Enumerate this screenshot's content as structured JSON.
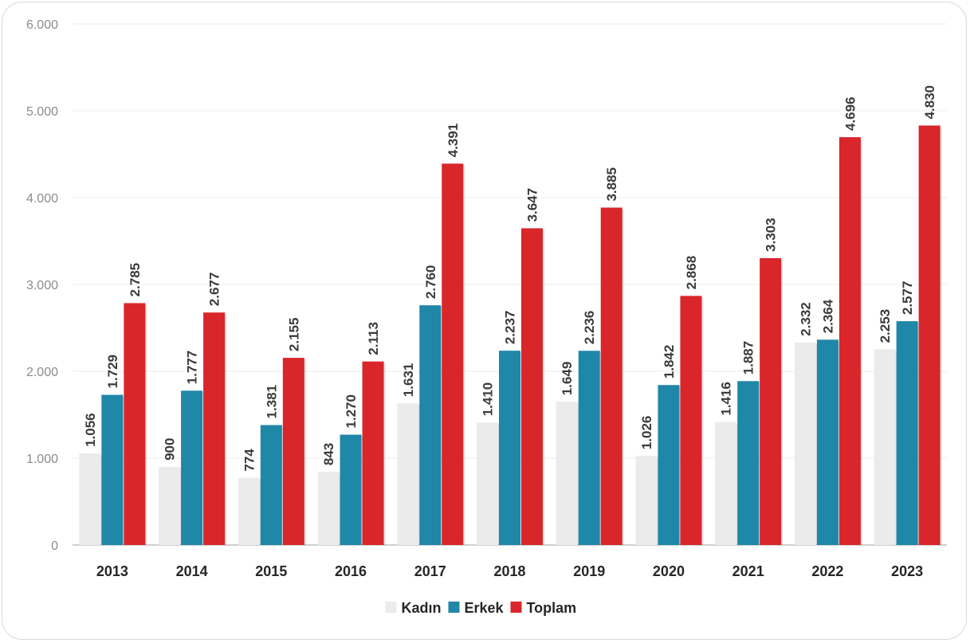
{
  "chart_data": {
    "type": "bar",
    "categories": [
      "2013",
      "2014",
      "2015",
      "2016",
      "2017",
      "2018",
      "2019",
      "2020",
      "2021",
      "2022",
      "2023"
    ],
    "series": [
      {
        "name": "Kadın",
        "color": "#ebebeb",
        "values": [
          1056,
          900,
          774,
          843,
          1631,
          1410,
          1649,
          1026,
          1416,
          2332,
          2253
        ],
        "labels": [
          "1.056",
          "900",
          "774",
          "843",
          "1.631",
          "1.410",
          "1.649",
          "1.026",
          "1.416",
          "2.332",
          "2.253"
        ]
      },
      {
        "name": "Erkek",
        "color": "#1f87a8",
        "values": [
          1729,
          1777,
          1381,
          1270,
          2760,
          2237,
          2236,
          1842,
          1887,
          2364,
          2577
        ],
        "labels": [
          "1.729",
          "1.777",
          "1.381",
          "1.270",
          "2.760",
          "2.237",
          "2.236",
          "1.842",
          "1.887",
          "2.364",
          "2.577"
        ]
      },
      {
        "name": "Toplam",
        "color": "#d9262b",
        "values": [
          2785,
          2677,
          2155,
          2113,
          4391,
          3647,
          3885,
          2868,
          3303,
          4696,
          4830
        ],
        "labels": [
          "2.785",
          "2.677",
          "2.155",
          "2.113",
          "4.391",
          "3.647",
          "3.885",
          "2.868",
          "3.303",
          "4.696",
          "4.830"
        ]
      }
    ],
    "y_ticks": [
      {
        "value": 0,
        "label": "0"
      },
      {
        "value": 1000,
        "label": "1.000"
      },
      {
        "value": 2000,
        "label": "2.000"
      },
      {
        "value": 3000,
        "label": "3.000"
      },
      {
        "value": 4000,
        "label": "4.000"
      },
      {
        "value": 5000,
        "label": "5.000"
      },
      {
        "value": 6000,
        "label": "6.000"
      }
    ],
    "ylim": [
      0,
      6000
    ],
    "grid": true,
    "legend": "bottom"
  }
}
